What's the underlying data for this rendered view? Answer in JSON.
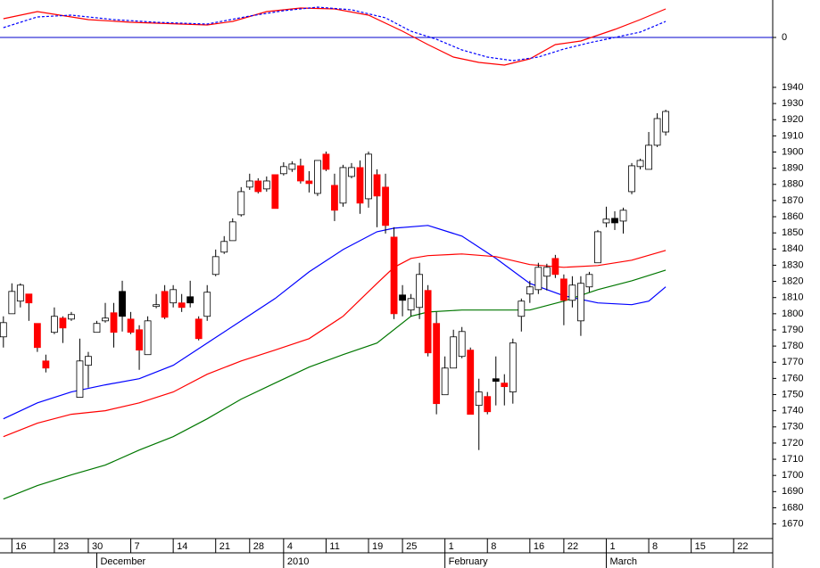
{
  "chart_data": [
    {
      "type": "line",
      "xlim": [
        -0.4,
        90.6
      ],
      "ylim": [
        -4.6,
        4.2
      ],
      "yticks": [
        0
      ],
      "grid": true,
      "grid_color": "#0000cc",
      "series": [
        {
          "color": "#ff0000",
          "style": "solid",
          "x": [
            0,
            4,
            6,
            10,
            15,
            24,
            27,
            31,
            35,
            39,
            43,
            47,
            50,
            53,
            56,
            59,
            62,
            65,
            68,
            72,
            75,
            78
          ],
          "values": [
            2.1,
            2.9,
            2.6,
            2.0,
            1.7,
            1.4,
            1.8,
            2.9,
            3.3,
            3.2,
            2.5,
            0.7,
            -0.8,
            -2.2,
            -2.8,
            -3.1,
            -2.4,
            -0.8,
            -0.4,
            0.9,
            2.0,
            3.2
          ]
        },
        {
          "color": "#0000ff",
          "style": "dashed",
          "x": [
            0,
            4,
            8,
            13,
            18,
            24,
            29,
            33,
            37,
            41,
            45,
            48,
            51,
            54,
            57,
            60,
            63,
            66,
            69,
            72,
            75,
            78
          ],
          "values": [
            1.1,
            2.3,
            2.5,
            2.0,
            1.7,
            1.5,
            2.4,
            3.0,
            3.4,
            3.1,
            2.2,
            0.7,
            -0.2,
            -1.4,
            -2.2,
            -2.6,
            -2.2,
            -1.3,
            -0.6,
            0.0,
            0.6,
            1.8
          ]
        }
      ]
    },
    {
      "type": "candlestick",
      "xlim": [
        -0.4,
        90.6
      ],
      "ylim": [
        1661.5,
        1945.5
      ],
      "yticks": [
        1670,
        1680,
        1690,
        1700,
        1710,
        1720,
        1730,
        1740,
        1750,
        1760,
        1770,
        1780,
        1790,
        1800,
        1810,
        1820,
        1830,
        1840,
        1850,
        1860,
        1870,
        1880,
        1890,
        1900,
        1910,
        1920,
        1930,
        1940
      ],
      "xticks": [
        {
          "value": 1,
          "label": "16"
        },
        {
          "value": 6,
          "label": "23"
        },
        {
          "value": 10,
          "label": "30"
        },
        {
          "value": 15,
          "label": "7"
        },
        {
          "value": 20,
          "label": "14"
        },
        {
          "value": 25,
          "label": "21"
        },
        {
          "value": 29,
          "label": "28"
        },
        {
          "value": 33,
          "label": "4"
        },
        {
          "value": 38,
          "label": "11"
        },
        {
          "value": 43,
          "label": "19"
        },
        {
          "value": 47,
          "label": "25"
        },
        {
          "value": 52,
          "label": "1"
        },
        {
          "value": 57,
          "label": "8"
        },
        {
          "value": 62,
          "label": "16"
        },
        {
          "value": 66,
          "label": "22"
        },
        {
          "value": 71,
          "label": "1"
        },
        {
          "value": 76,
          "label": "8"
        },
        {
          "value": 81,
          "label": "15"
        },
        {
          "value": 86,
          "label": "22"
        }
      ],
      "month_ticks": [
        {
          "value": 11,
          "label": "December"
        },
        {
          "value": 33,
          "label": "2010"
        },
        {
          "value": 52,
          "label": "February"
        },
        {
          "value": 71,
          "label": "March"
        }
      ],
      "open": [
        1785.7,
        1800.0,
        1807.8,
        1812.2,
        1794.0,
        1770.8,
        1788.5,
        1797.3,
        1796.7,
        1748.3,
        1768.1,
        1788.5,
        1795.6,
        1800.6,
        1813.8,
        1796.7,
        1790.1,
        1774.7,
        1804.5,
        1813.8,
        1806.7,
        1806.7,
        1810.5,
        1796.7,
        1798.4,
        1824.3,
        1838.1,
        1845.2,
        1861.2,
        1878.3,
        1882.1,
        1877.2,
        1886.0,
        1886.6,
        1889.3,
        1891.5,
        1882.1,
        1874.4,
        1898.7,
        1879.4,
        1868.4,
        1884.9,
        1890.4,
        1871.1,
        1886.0,
        1878.3,
        1847.4,
        1811.6,
        1802.3,
        1803.9,
        1814.4,
        1794.0,
        1749.9,
        1766.4,
        1773.6,
        1777.5,
        1743.3,
        1748.8,
        1759.8,
        1757.1,
        1751.6,
        1798.4,
        1812.2,
        1814.9,
        1823.2,
        1834.2,
        1821.5,
        1808.3,
        1795.6,
        1816.6,
        1831.5,
        1856.2,
        1859.0,
        1857.3,
        1875.5,
        1891.0,
        1889.3,
        1904.2,
        1912.4
      ],
      "high": [
        1798.4,
        1818.8,
        1818.8,
        1812.2,
        1794.0,
        1774.7,
        1803.9,
        1798.4,
        1801.1,
        1784.6,
        1776.4,
        1795.6,
        1806.7,
        1806.7,
        1820.4,
        1801.1,
        1792.9,
        1798.4,
        1812.2,
        1817.7,
        1817.7,
        1812.2,
        1820.4,
        1798.4,
        1817.7,
        1839.7,
        1848.0,
        1859.0,
        1878.3,
        1886.6,
        1883.8,
        1884.9,
        1886.0,
        1893.7,
        1894.3,
        1895.9,
        1888.2,
        1894.8,
        1900.3,
        1886.6,
        1892.1,
        1893.2,
        1894.8,
        1900.3,
        1889.3,
        1886.6,
        1853.5,
        1817.7,
        1812.2,
        1831.5,
        1817.7,
        1801.1,
        1773.6,
        1790.1,
        1791.8,
        1779.1,
        1759.8,
        1751.6,
        1773.6,
        1762.6,
        1784.6,
        1809.4,
        1820.4,
        1831.5,
        1830.9,
        1836.4,
        1824.3,
        1823.2,
        1823.2,
        1825.9,
        1851.8,
        1866.2,
        1863.4,
        1865.6,
        1893.2,
        1895.9,
        1912.4,
        1924.0,
        1926.2
      ],
      "low": [
        1779.1,
        1800.0,
        1803.9,
        1795.6,
        1776.4,
        1763.7,
        1787.4,
        1781.9,
        1795.6,
        1748.3,
        1754.3,
        1788.5,
        1794.5,
        1779.1,
        1789.0,
        1787.4,
        1765.3,
        1774.7,
        1803.4,
        1796.7,
        1803.9,
        1801.1,
        1803.9,
        1783.5,
        1795.6,
        1823.2,
        1837.0,
        1845.2,
        1860.1,
        1876.6,
        1874.4,
        1875.5,
        1865.1,
        1885.5,
        1887.7,
        1880.5,
        1875.0,
        1872.8,
        1888.2,
        1857.3,
        1866.2,
        1883.8,
        1861.8,
        1865.6,
        1853.5,
        1849.6,
        1796.7,
        1798.4,
        1798.4,
        1796.7,
        1773.6,
        1737.8,
        1749.9,
        1766.4,
        1772.5,
        1737.8,
        1715.7,
        1737.8,
        1743.3,
        1743.3,
        1744.4,
        1789.0,
        1806.7,
        1812.2,
        1814.4,
        1822.1,
        1792.9,
        1803.9,
        1786.3,
        1813.3,
        1831.5,
        1853.5,
        1851.8,
        1849.6,
        1873.9,
        1889.3,
        1889.3,
        1903.1,
        1910.2
      ],
      "close": [
        1794.5,
        1813.8,
        1817.7,
        1806.7,
        1779.1,
        1766.4,
        1798.4,
        1791.2,
        1799.5,
        1770.8,
        1773.6,
        1794.0,
        1797.3,
        1788.5,
        1798.4,
        1788.5,
        1777.5,
        1795.6,
        1805.6,
        1797.8,
        1814.9,
        1803.9,
        1806.7,
        1784.6,
        1813.3,
        1835.3,
        1844.7,
        1856.8,
        1875.5,
        1882.1,
        1875.5,
        1882.1,
        1865.1,
        1891.0,
        1892.6,
        1882.1,
        1880.5,
        1894.8,
        1889.3,
        1864.0,
        1890.4,
        1890.4,
        1868.4,
        1898.7,
        1872.8,
        1854.6,
        1800.0,
        1808.3,
        1809.4,
        1824.3,
        1775.8,
        1744.4,
        1766.4,
        1785.7,
        1789.0,
        1737.8,
        1751.6,
        1739.4,
        1758.2,
        1754.9,
        1781.9,
        1807.8,
        1816.6,
        1828.7,
        1828.7,
        1824.3,
        1808.3,
        1817.7,
        1818.8,
        1824.3,
        1850.7,
        1858.5,
        1856.2,
        1864.0,
        1891.5,
        1894.8,
        1904.2,
        1920.7,
        1925.1
      ],
      "colors": [
        "#ffffff",
        "#ffffff",
        "#ffffff",
        "#ff0000",
        "#ff0000",
        "#ff0000",
        "#ffffff",
        "#ff0000",
        "#ffffff",
        "#ffffff",
        "#ffffff",
        "#ffffff",
        "#ffffff",
        "#ff0000",
        "#000000",
        "#ff0000",
        "#ff0000",
        "#ffffff",
        "#ffffff",
        "#ff0000",
        "#ffffff",
        "#ff0000",
        "#000000",
        "#ff0000",
        "#ffffff",
        "#ffffff",
        "#ffffff",
        "#ffffff",
        "#ffffff",
        "#ffffff",
        "#ff0000",
        "#ffffff",
        "#ff0000",
        "#ffffff",
        "#ffffff",
        "#ff0000",
        "#ff0000",
        "#ffffff",
        "#ff0000",
        "#ff0000",
        "#ffffff",
        "#ffffff",
        "#ff0000",
        "#ffffff",
        "#ff0000",
        "#ff0000",
        "#ff0000",
        "#000000",
        "#ffffff",
        "#ffffff",
        "#ff0000",
        "#ff0000",
        "#ffffff",
        "#ffffff",
        "#ffffff",
        "#ff0000",
        "#ffffff",
        "#ff0000",
        "#000000",
        "#ff0000",
        "#ffffff",
        "#ffffff",
        "#ffffff",
        "#ffffff",
        "#ffffff",
        "#ff0000",
        "#ff0000",
        "#ffffff",
        "#ffffff",
        "#ffffff",
        "#ffffff",
        "#ffffff",
        "#000000",
        "#ffffff",
        "#ffffff",
        "#ffffff",
        "#ffffff",
        "#ffffff",
        "#ffffff"
      ],
      "series": [
        {
          "color": "#0000ff",
          "style": "solid",
          "x": [
            0,
            4,
            8,
            12,
            16,
            20,
            24,
            28,
            32,
            36,
            40,
            44,
            46,
            50,
            54,
            58,
            62,
            66,
            70,
            74,
            76,
            78
          ],
          "values": [
            1735.0,
            1744.9,
            1751.6,
            1756.0,
            1759.8,
            1768.1,
            1781.9,
            1795.6,
            1809.4,
            1825.9,
            1839.7,
            1850.7,
            1852.9,
            1854.6,
            1848.0,
            1834.2,
            1818.8,
            1811.1,
            1806.7,
            1805.6,
            1807.8,
            1816.6
          ]
        },
        {
          "color": "#ff0000",
          "style": "solid",
          "x": [
            0,
            4,
            8,
            12,
            16,
            20,
            24,
            28,
            32,
            36,
            40,
            44,
            46,
            48,
            50,
            54,
            58,
            62,
            66,
            70,
            74,
            78
          ],
          "values": [
            1724.0,
            1732.3,
            1737.8,
            1740.0,
            1744.9,
            1751.6,
            1762.6,
            1770.8,
            1777.5,
            1784.6,
            1798.4,
            1818.8,
            1828.7,
            1834.2,
            1835.9,
            1837.0,
            1835.3,
            1830.4,
            1828.7,
            1829.8,
            1833.1,
            1839.2
          ]
        },
        {
          "color": "#007700",
          "style": "solid",
          "x": [
            0,
            4,
            8,
            12,
            16,
            20,
            24,
            28,
            32,
            36,
            40,
            44,
            48,
            50,
            54,
            58,
            62,
            66,
            70,
            74,
            78
          ],
          "values": [
            1685.4,
            1693.7,
            1700.3,
            1706.4,
            1715.7,
            1724.0,
            1735.0,
            1747.2,
            1757.1,
            1767.0,
            1774.7,
            1781.9,
            1798.4,
            1801.1,
            1802.3,
            1802.3,
            1802.3,
            1807.8,
            1814.9,
            1820.4,
            1827.0
          ]
        }
      ]
    }
  ]
}
